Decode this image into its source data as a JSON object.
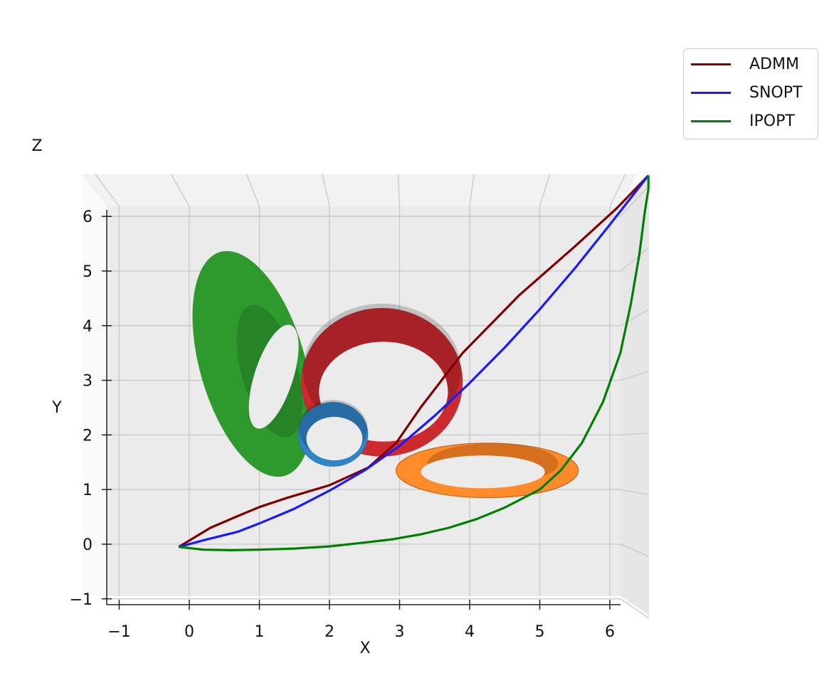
{
  "chart_data": {
    "type": "line",
    "view": "3d-top",
    "xlabel": "X",
    "ylabel": "Y",
    "zlabel": "Z",
    "xlim": [
      -1.2,
      6.2
    ],
    "ylim": [
      -1.1,
      6.2
    ],
    "xticks": [
      -1,
      0,
      1,
      2,
      3,
      4,
      5,
      6
    ],
    "yticks": [
      -1,
      0,
      1,
      2,
      3,
      4,
      5,
      6
    ],
    "grid": true,
    "legend_position": "top-right outside",
    "series": [
      {
        "name": "ADMM",
        "color": "#800000",
        "x": [
          -0.15,
          0.3,
          0.7,
          1.0,
          1.4,
          2.0,
          2.55,
          2.95,
          3.3,
          3.9,
          4.7,
          5.5,
          6.1,
          6.55
        ],
        "y": [
          -0.05,
          0.3,
          0.52,
          0.68,
          0.85,
          1.08,
          1.4,
          1.85,
          2.5,
          3.5,
          4.55,
          5.45,
          6.15,
          6.75
        ]
      },
      {
        "name": "SNOPT",
        "color": "#1a1aff",
        "x": [
          -0.15,
          0.2,
          0.7,
          1.0,
          1.5,
          2.0,
          2.5,
          3.0,
          3.5,
          4.0,
          4.5,
          5.0,
          5.5,
          6.0,
          6.55
        ],
        "y": [
          -0.05,
          0.07,
          0.23,
          0.38,
          0.65,
          0.98,
          1.35,
          1.8,
          2.35,
          2.95,
          3.6,
          4.3,
          5.05,
          5.85,
          6.75
        ]
      },
      {
        "name": "IPOPT",
        "color": "#008000",
        "x": [
          -0.15,
          0.2,
          0.6,
          1.0,
          1.5,
          2.0,
          2.5,
          2.9,
          3.3,
          3.7,
          4.1,
          4.5,
          5.0,
          5.3,
          5.6,
          5.9,
          6.15,
          6.3,
          6.42,
          6.5,
          6.55,
          6.55
        ],
        "y": [
          -0.05,
          -0.1,
          -0.11,
          -0.1,
          -0.08,
          -0.04,
          0.03,
          0.09,
          0.18,
          0.3,
          0.46,
          0.67,
          1.0,
          1.35,
          1.85,
          2.6,
          3.5,
          4.4,
          5.3,
          6.1,
          6.5,
          6.75
        ]
      }
    ],
    "obstacles": [
      {
        "color": "#2e9a2e",
        "cx": 0.9,
        "cy": 3.3,
        "r": 1.25,
        "depth": 0.55,
        "view": "tilted ring"
      },
      {
        "color": "#cc2a2f",
        "cx": 2.75,
        "cy": 3.05,
        "r": 1.15,
        "depth": 0.55,
        "view": "cylinder"
      },
      {
        "color": "#2e86c8",
        "cx": 2.05,
        "cy": 2.05,
        "r": 0.5,
        "depth": 0.25,
        "view": "cylinder"
      },
      {
        "color": "#ff8a2a",
        "cx": 4.25,
        "cy": 1.35,
        "r": 1.3,
        "depth": 0.2,
        "view": "flat ring"
      }
    ]
  },
  "legend": {
    "items": [
      {
        "label": "ADMM",
        "color": "#800000"
      },
      {
        "label": "SNOPT",
        "color": "#1a1aff"
      },
      {
        "label": "IPOPT",
        "color": "#008000"
      }
    ]
  }
}
